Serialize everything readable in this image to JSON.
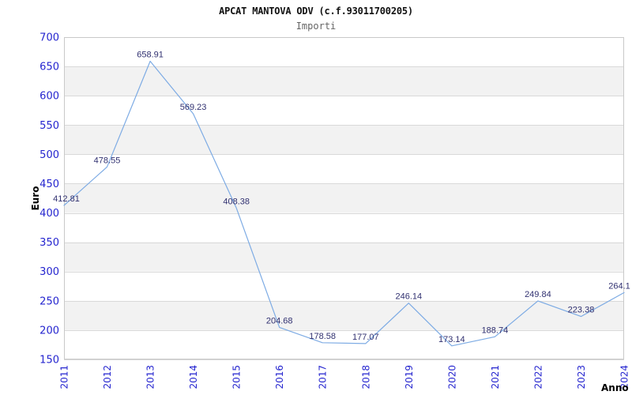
{
  "chart_data": {
    "type": "line",
    "title": "APCAT MANTOVA ODV (c.f.93011700205)",
    "subtitle": "Importi",
    "xlabel": "Anno",
    "ylabel": "Euro",
    "categories": [
      "2011",
      "2012",
      "2013",
      "2014",
      "2015",
      "2016",
      "2017",
      "2018",
      "2019",
      "2020",
      "2021",
      "2022",
      "2023",
      "2024"
    ],
    "values": [
      412.81,
      478.55,
      658.91,
      569.23,
      408.38,
      204.68,
      178.58,
      177.07,
      246.14,
      173.14,
      188.74,
      249.84,
      223.38,
      264.1
    ],
    "point_labels": [
      "412.81",
      "478.55",
      "658.91",
      "569.23",
      "408.38",
      "204.68",
      "178.58",
      "177.07",
      "246.14",
      "173.14",
      "188.74",
      "249.84",
      "223.38",
      "264.1"
    ],
    "ylim": [
      150,
      700
    ],
    "ytick_step": 50,
    "yticks": [
      150,
      200,
      250,
      300,
      350,
      400,
      450,
      500,
      550,
      600,
      650,
      700
    ],
    "legend": "none",
    "grid": "horizontal-bands",
    "xtick_rotation": -90,
    "colors": {
      "line": "#7dabe4",
      "tick_label": "#2525cf",
      "point_label": "#303070",
      "band": "#ffffff",
      "band_alt": "#f2f2f2",
      "gridline": "#d9d9d9",
      "border": "#c9c9c9",
      "title": "#111111",
      "subtitle": "#666666"
    }
  }
}
